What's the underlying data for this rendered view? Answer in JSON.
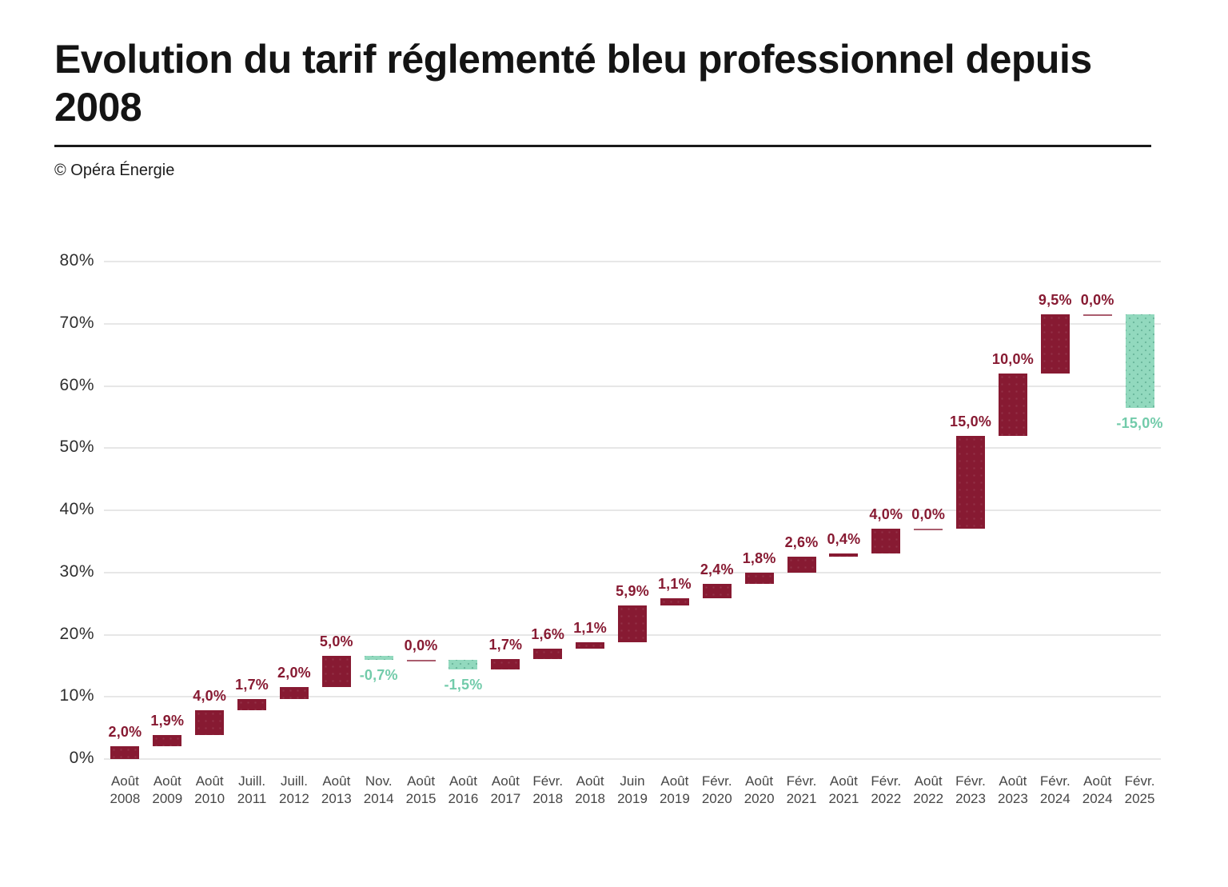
{
  "header": {
    "title": "Evolution du tarif réglementé bleu professionnel depuis 2008",
    "credit": "© Opéra Énergie"
  },
  "chart_data": {
    "type": "bar",
    "subtype": "waterfall",
    "title": "Evolution du tarif réglementé bleu professionnel depuis 2008",
    "source": "© Opéra Énergie",
    "categories": [
      {
        "month": "Août",
        "year": "2008"
      },
      {
        "month": "Août",
        "year": "2009"
      },
      {
        "month": "Août",
        "year": "2010"
      },
      {
        "month": "Juill.",
        "year": "2011"
      },
      {
        "month": "Juill.",
        "year": "2012"
      },
      {
        "month": "Août",
        "year": "2013"
      },
      {
        "month": "Nov.",
        "year": "2014"
      },
      {
        "month": "Août",
        "year": "2015"
      },
      {
        "month": "Août",
        "year": "2016"
      },
      {
        "month": "Août",
        "year": "2017"
      },
      {
        "month": "Févr.",
        "year": "2018"
      },
      {
        "month": "Août",
        "year": "2018"
      },
      {
        "month": "Juin",
        "year": "2019"
      },
      {
        "month": "Août",
        "year": "2019"
      },
      {
        "month": "Févr.",
        "year": "2020"
      },
      {
        "month": "Août",
        "year": "2020"
      },
      {
        "month": "Févr.",
        "year": "2021"
      },
      {
        "month": "Août",
        "year": "2021"
      },
      {
        "month": "Févr.",
        "year": "2022"
      },
      {
        "month": "Août",
        "year": "2022"
      },
      {
        "month": "Févr.",
        "year": "2023"
      },
      {
        "month": "Août",
        "year": "2023"
      },
      {
        "month": "Févr.",
        "year": "2024"
      },
      {
        "month": "Août",
        "year": "2024"
      },
      {
        "month": "Févr.",
        "year": "2025"
      }
    ],
    "values": [
      2.0,
      1.9,
      4.0,
      1.7,
      2.0,
      5.0,
      -0.7,
      0.0,
      -1.5,
      1.7,
      1.6,
      1.1,
      5.9,
      1.1,
      2.4,
      1.8,
      2.6,
      0.4,
      4.0,
      0.0,
      15.0,
      10.0,
      9.5,
      0.0,
      -15.0
    ],
    "labels": [
      "2,0%",
      "1,9%",
      "4,0%",
      "1,7%",
      "2,0%",
      "5,0%",
      "-0,7%",
      "0,0%",
      "-1,5%",
      "1,7%",
      "1,6%",
      "1,1%",
      "5,9%",
      "1,1%",
      "2,4%",
      "1,8%",
      "2,6%",
      "0,4%",
      "4,0%",
      "0,0%",
      "15,0%",
      "10,0%",
      "9,5%",
      "0,0%",
      "-15,0%"
    ],
    "cumulative_end": [
      2.0,
      3.9,
      7.9,
      9.6,
      11.6,
      16.6,
      15.9,
      15.9,
      14.4,
      16.1,
      17.7,
      18.8,
      24.7,
      25.8,
      28.2,
      30.0,
      32.6,
      33.0,
      37.0,
      37.0,
      52.0,
      62.0,
      71.5,
      71.5,
      56.5
    ],
    "y_ticks": [
      "0%",
      "10%",
      "20%",
      "30%",
      "40%",
      "50%",
      "60%",
      "70%",
      "80%"
    ],
    "ylim": [
      0,
      80
    ],
    "grid": true,
    "legend": "none",
    "colors": {
      "increase": "#871a32",
      "decrease": "#92d9be",
      "decrease_label": "#72cbaa",
      "gridline": "#e7e7e7",
      "axis_text": "#2f2f2f",
      "category_text": "#464646"
    }
  }
}
